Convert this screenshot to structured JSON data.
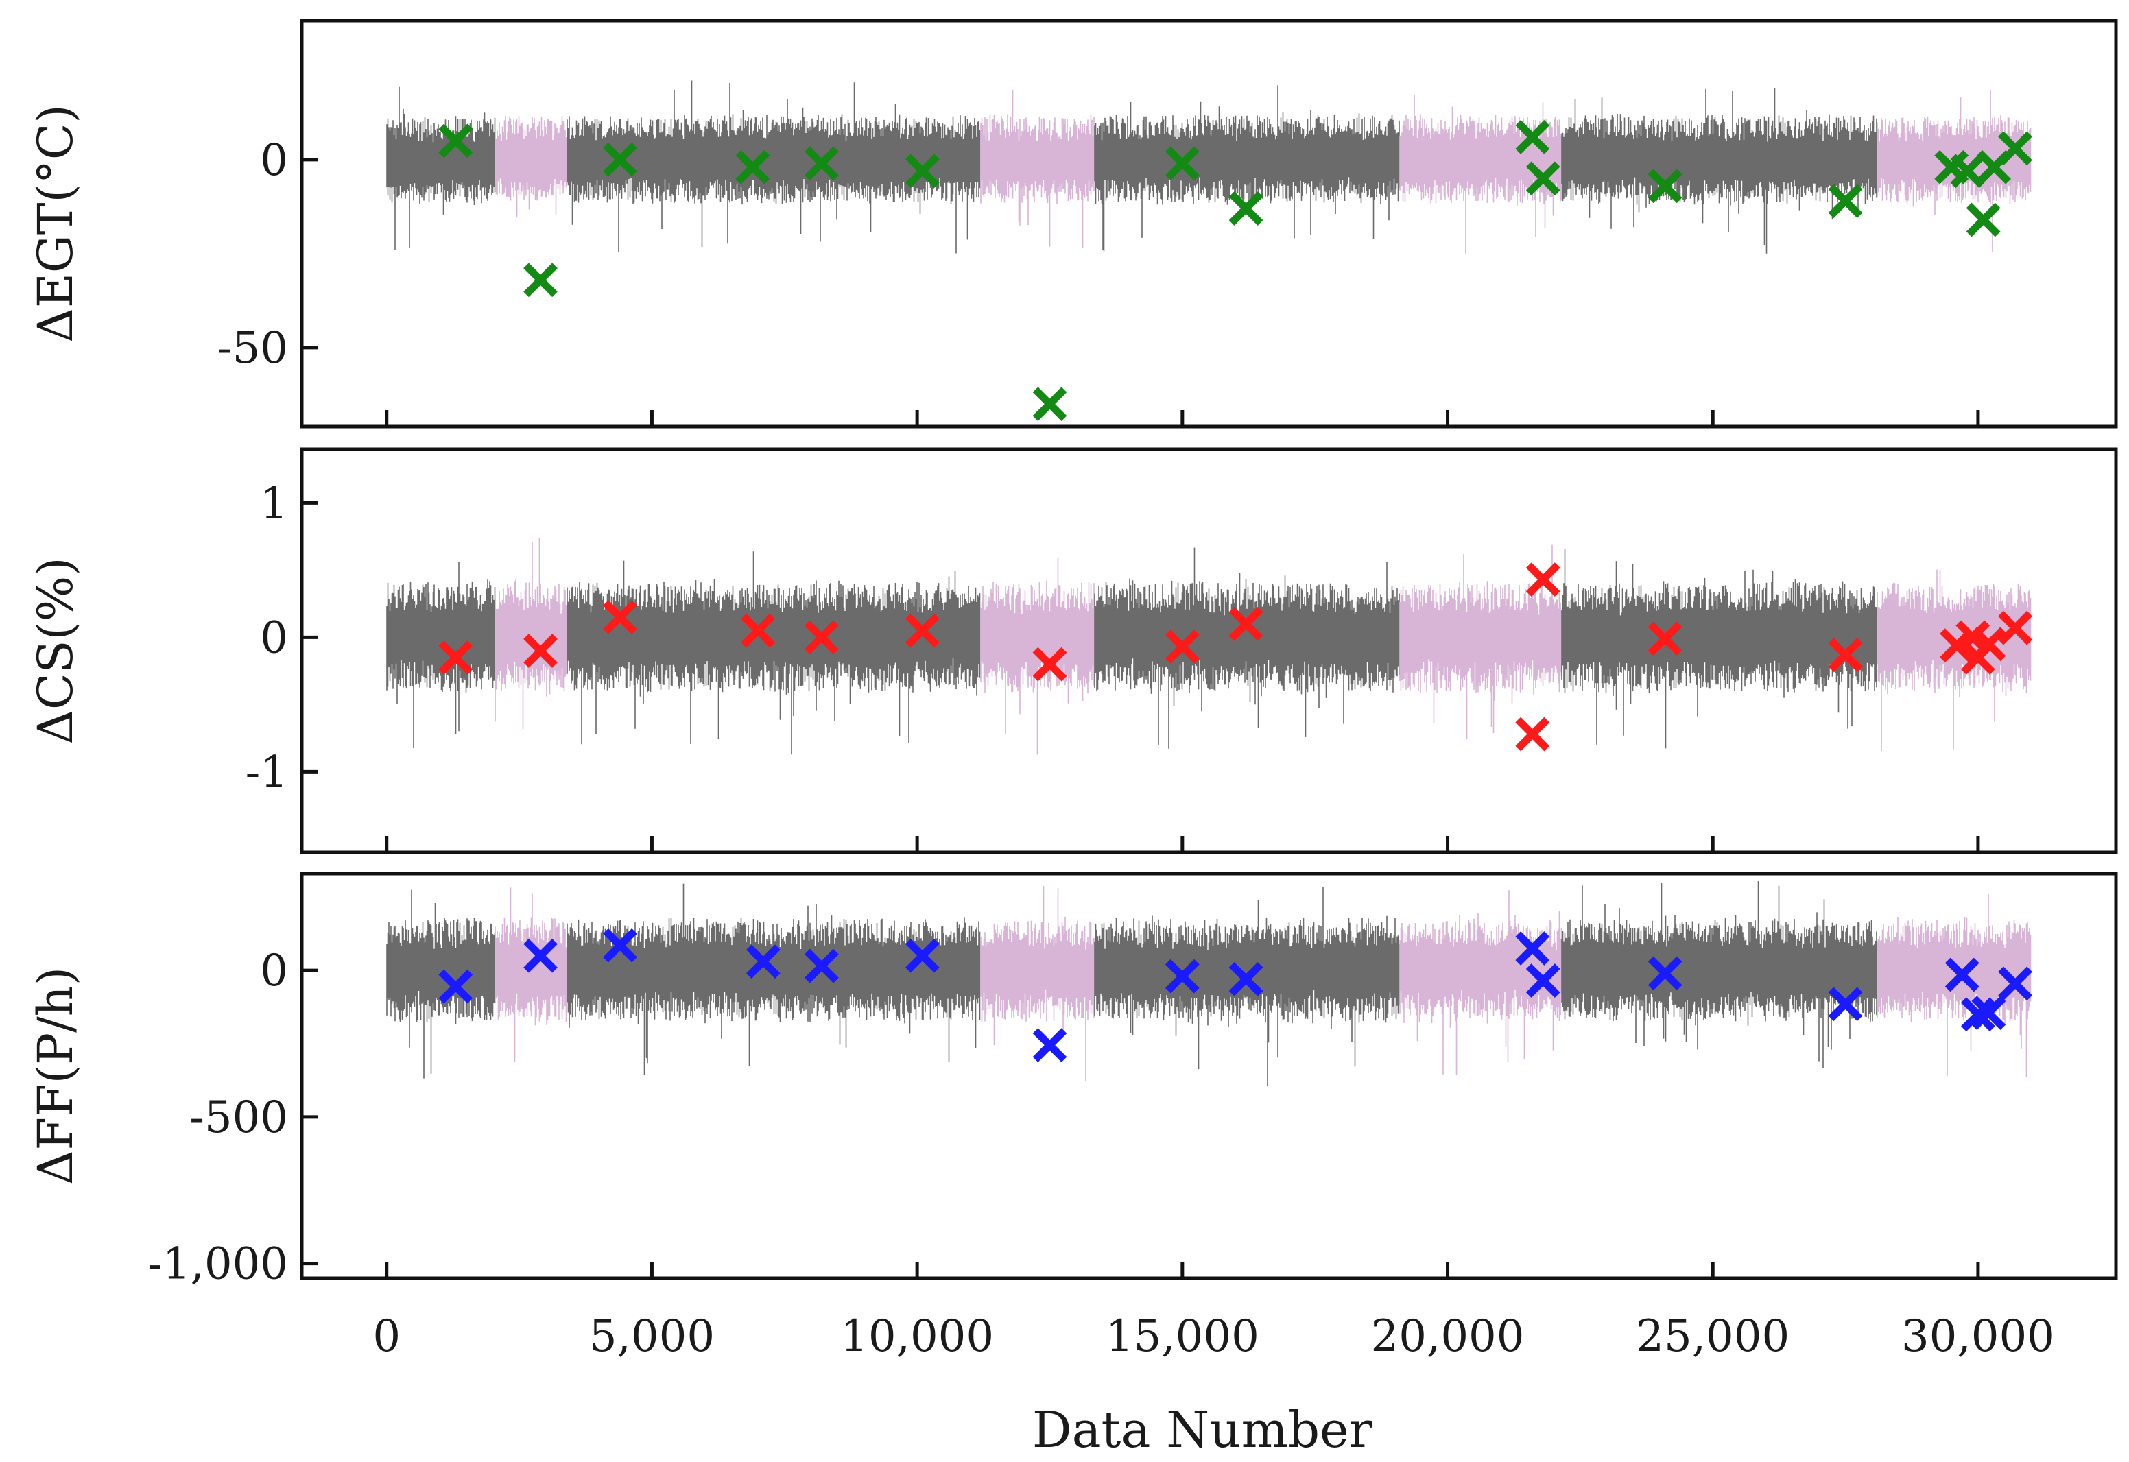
{
  "chart_data": {
    "type": "scatter",
    "xlabel": "Data Number",
    "xlim": [
      -1600,
      32600
    ],
    "x_ticks": [
      0,
      5000,
      10000,
      15000,
      20000,
      25000,
      30000
    ],
    "x_tick_labels": [
      "0",
      "5,000",
      "10,000",
      "15,000",
      "20,000",
      "25,000",
      "30,000"
    ],
    "colors": {
      "noise_gray": "#6b6b6b",
      "noise_pink": "#d8b4d6",
      "egt_marker": "#138a13",
      "cs_marker": "#ff1a1a",
      "ff_marker": "#1a1aff"
    },
    "background_segments": [
      {
        "x0": 0,
        "x1": 2050,
        "color": "gray"
      },
      {
        "x0": 2050,
        "x1": 3400,
        "color": "pink"
      },
      {
        "x0": 3400,
        "x1": 11200,
        "color": "gray"
      },
      {
        "x0": 11200,
        "x1": 13350,
        "color": "pink"
      },
      {
        "x0": 13350,
        "x1": 19100,
        "color": "gray"
      },
      {
        "x0": 19100,
        "x1": 22150,
        "color": "pink"
      },
      {
        "x0": 22150,
        "x1": 28100,
        "color": "gray"
      },
      {
        "x0": 28100,
        "x1": 31000,
        "color": "pink"
      }
    ],
    "panels": [
      {
        "name": "egt",
        "ylabel": "ΔEGT(°C)",
        "ylim": [
          -71,
          37
        ],
        "y_ticks": [
          0,
          -50
        ],
        "y_tick_labels": [
          "0",
          "-50"
        ],
        "noise_amplitude": 10,
        "marker_color": "#138a13",
        "points": [
          [
            1300,
            5
          ],
          [
            2900,
            -32
          ],
          [
            4400,
            0
          ],
          [
            6900,
            -2
          ],
          [
            8200,
            -1
          ],
          [
            10100,
            -3
          ],
          [
            12500,
            -65
          ],
          [
            15000,
            -1
          ],
          [
            16200,
            -13
          ],
          [
            21600,
            6
          ],
          [
            21800,
            -5
          ],
          [
            24100,
            -7
          ],
          [
            27500,
            -11
          ],
          [
            29500,
            -2
          ],
          [
            29800,
            -3
          ],
          [
            30100,
            -16
          ],
          [
            30300,
            -2
          ],
          [
            30700,
            3
          ]
        ]
      },
      {
        "name": "cs",
        "ylabel": "ΔCS(%)",
        "ylim": [
          -1.6,
          1.4
        ],
        "y_ticks": [
          1,
          0,
          -1
        ],
        "y_tick_labels": [
          "1",
          "0",
          "-1"
        ],
        "noise_amplitude": 0.35,
        "marker_color": "#ff1a1a",
        "points": [
          [
            1300,
            -0.15
          ],
          [
            2900,
            -0.1
          ],
          [
            4400,
            0.15
          ],
          [
            7000,
            0.05
          ],
          [
            8200,
            0
          ],
          [
            10100,
            0.05
          ],
          [
            12500,
            -0.2
          ],
          [
            15000,
            -0.07
          ],
          [
            16200,
            0.1
          ],
          [
            21600,
            -0.72
          ],
          [
            21800,
            0.43
          ],
          [
            24100,
            -0.01
          ],
          [
            27500,
            -0.13
          ],
          [
            29600,
            -0.06
          ],
          [
            29900,
            0
          ],
          [
            30000,
            -0.15
          ],
          [
            30200,
            -0.05
          ],
          [
            30700,
            0.07
          ]
        ]
      },
      {
        "name": "ff",
        "ylabel": "ΔFF(P/h)",
        "ylim": [
          -1050,
          330
        ],
        "y_ticks": [
          0,
          -500,
          -1000
        ],
        "y_tick_labels": [
          "0",
          "-500",
          "-1,000"
        ],
        "noise_amplitude": 150,
        "marker_color": "#1a1aff",
        "points": [
          [
            1300,
            -55
          ],
          [
            2900,
            50
          ],
          [
            4400,
            85
          ],
          [
            7100,
            30
          ],
          [
            8200,
            15
          ],
          [
            10100,
            50
          ],
          [
            12500,
            -255
          ],
          [
            15000,
            -20
          ],
          [
            16200,
            -30
          ],
          [
            21600,
            75
          ],
          [
            21800,
            -35
          ],
          [
            24100,
            -10
          ],
          [
            27500,
            -115
          ],
          [
            29700,
            -15
          ],
          [
            30000,
            -150
          ],
          [
            30200,
            -145
          ],
          [
            30700,
            -45
          ]
        ]
      }
    ]
  }
}
